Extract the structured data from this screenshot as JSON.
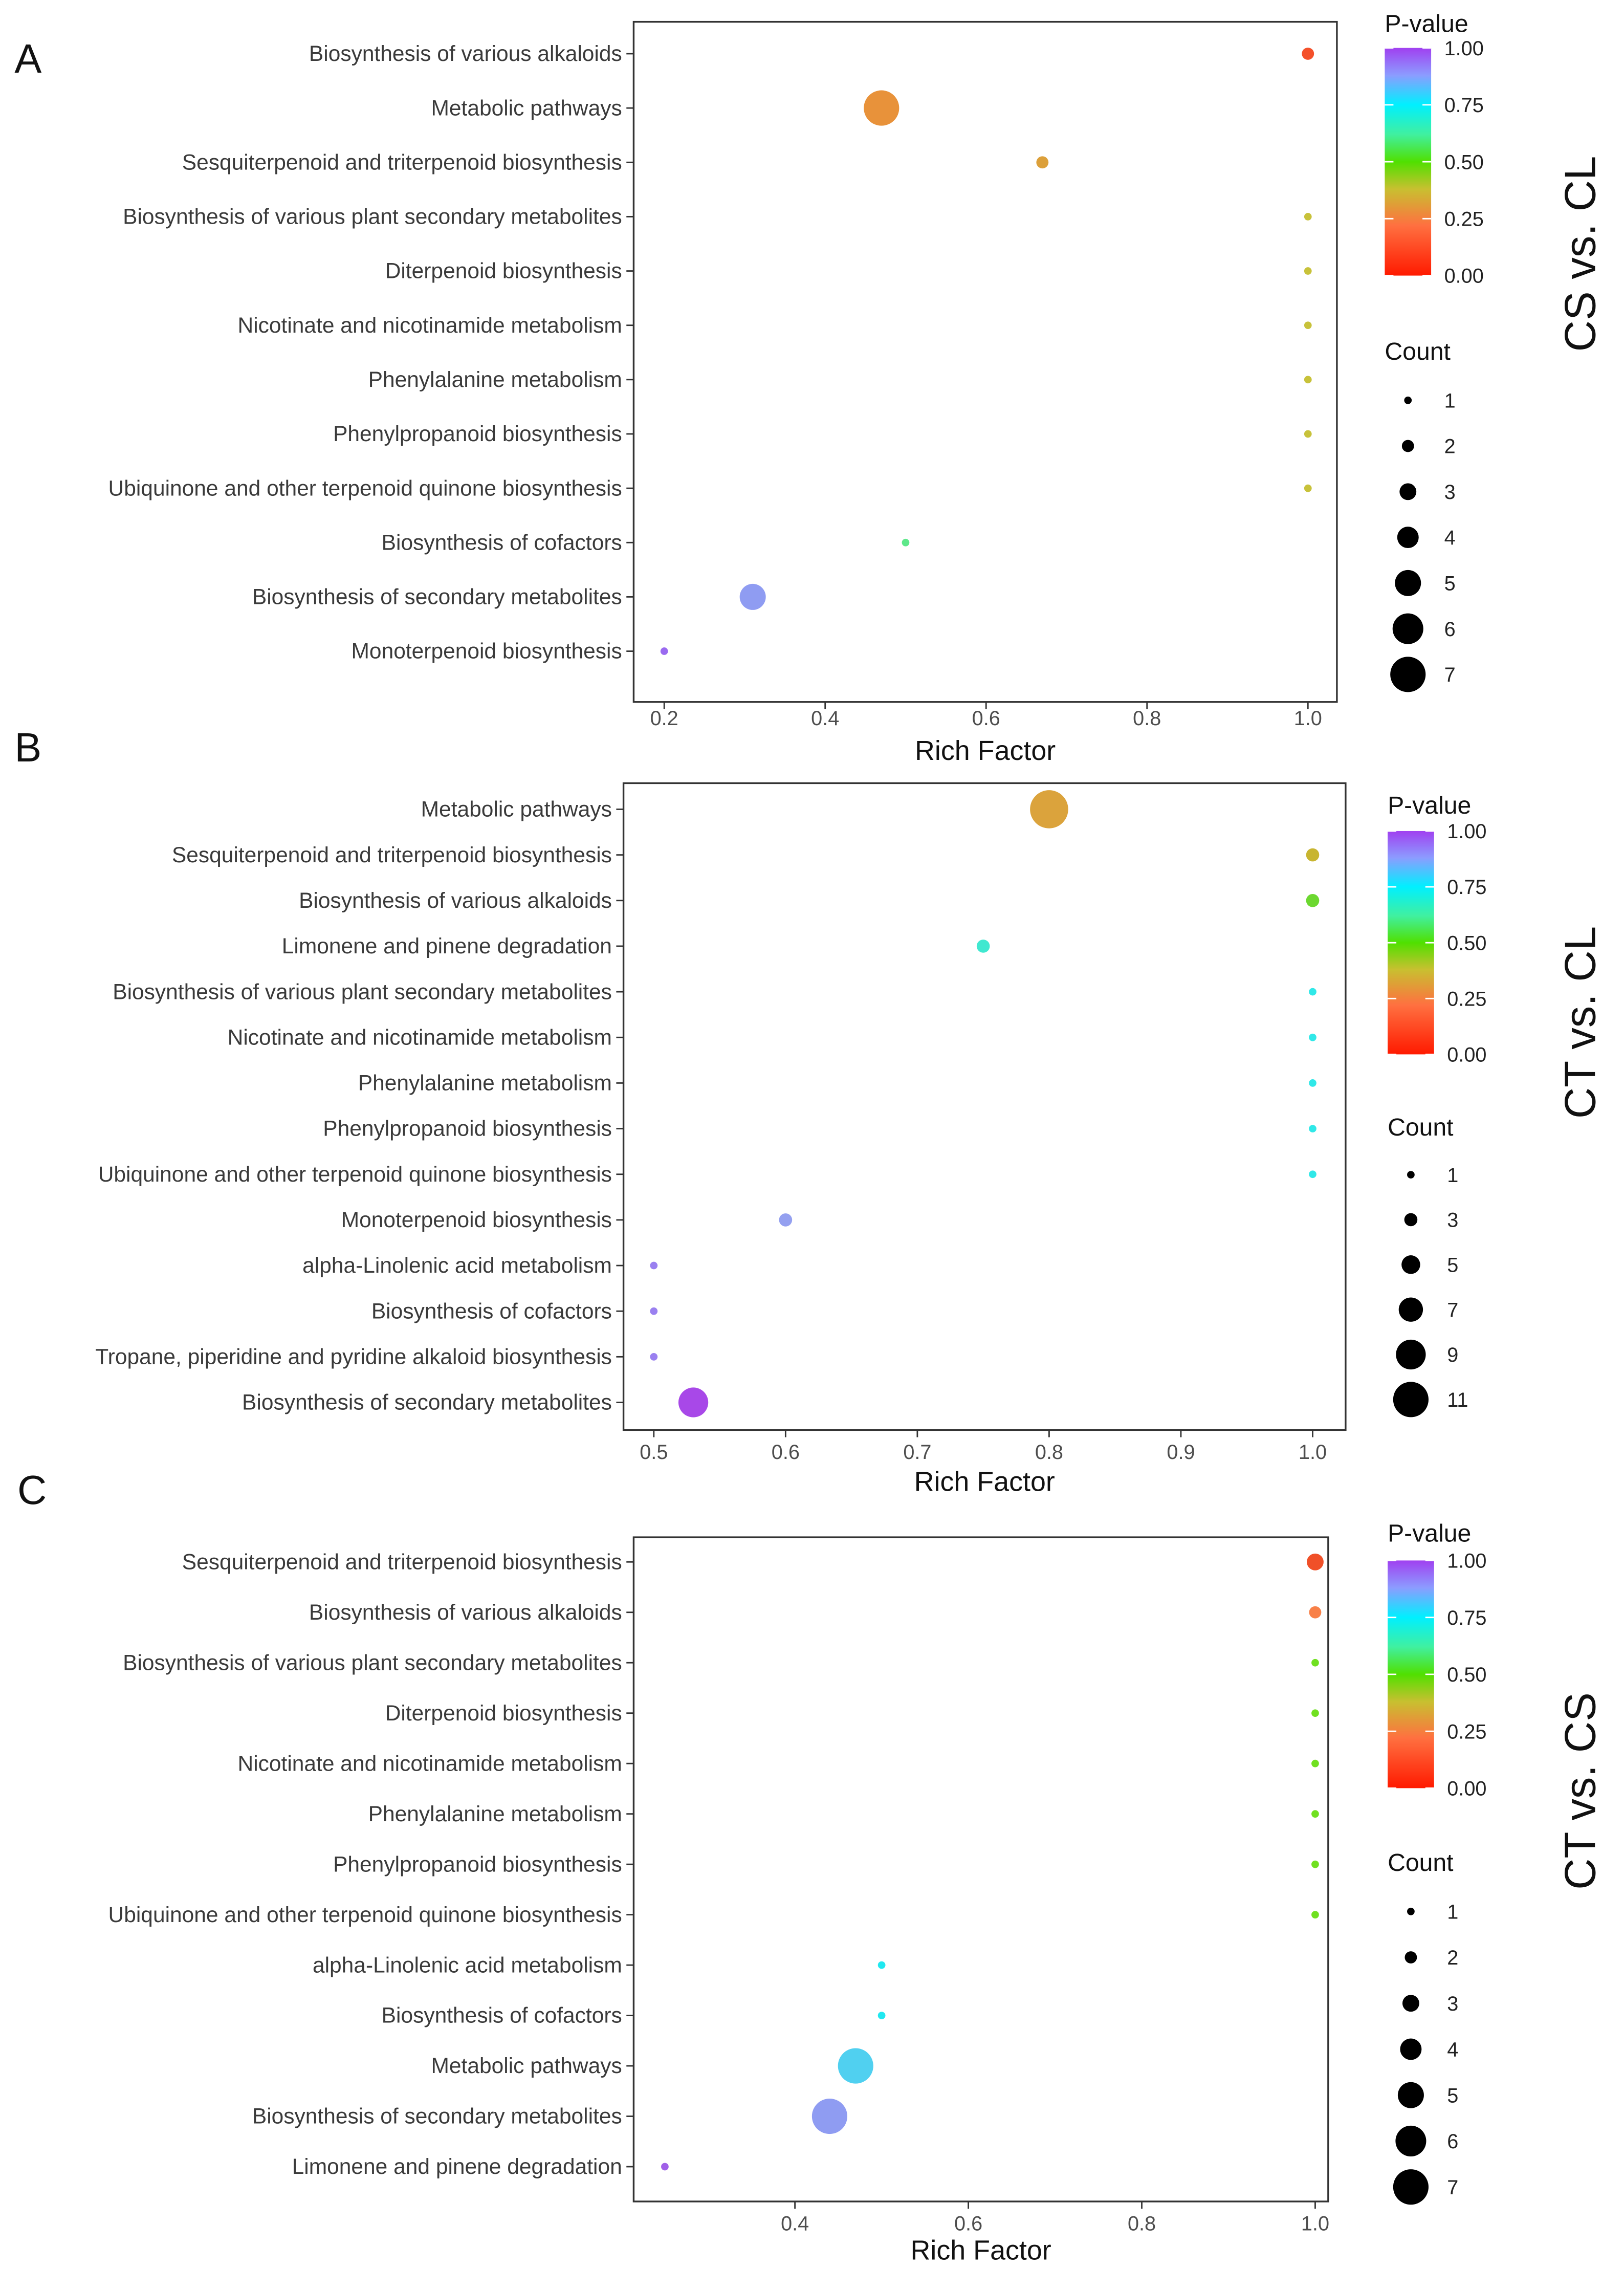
{
  "chart_data": [
    {
      "type": "scatter",
      "panel_label": "A",
      "title": "CS vs. CL",
      "xlabel": "Rich Factor",
      "xlim": [
        0.162,
        1.036
      ],
      "xticks": [
        0.2,
        0.4,
        0.6,
        0.8,
        1.0
      ],
      "xtick_labels": [
        "0.2",
        "0.4",
        "0.6",
        "0.8",
        "1.0"
      ],
      "grid": false,
      "color_legend": {
        "title": "P-value",
        "ticks": [
          "0.00",
          "0.25",
          "0.50",
          "0.75",
          "1.00"
        ]
      },
      "size_legend": {
        "title": "Count",
        "values": [
          1,
          2,
          3,
          4,
          5,
          6,
          7
        ]
      },
      "points": [
        {
          "term": "Biosynthesis of various alkaloids",
          "rich_factor": 1.0,
          "count": 2,
          "p_value": 0.1,
          "color": "#f4502a"
        },
        {
          "term": "Metabolic pathways",
          "rich_factor": 0.47,
          "count": 7,
          "p_value": 0.3,
          "color": "#e8923a"
        },
        {
          "term": "Sesquiterpenoid and triterpenoid biosynthesis",
          "rich_factor": 0.67,
          "count": 2,
          "p_value": 0.32,
          "color": "#dca03a"
        },
        {
          "term": "Biosynthesis of various plant secondary metabolites",
          "rich_factor": 1.0,
          "count": 1,
          "p_value": 0.4,
          "color": "#c8c23a"
        },
        {
          "term": "Diterpenoid biosynthesis",
          "rich_factor": 1.0,
          "count": 1,
          "p_value": 0.4,
          "color": "#c8c23a"
        },
        {
          "term": "Nicotinate and nicotinamide metabolism",
          "rich_factor": 1.0,
          "count": 1,
          "p_value": 0.4,
          "color": "#c8c23a"
        },
        {
          "term": "Phenylalanine metabolism",
          "rich_factor": 1.0,
          "count": 1,
          "p_value": 0.4,
          "color": "#c8c23a"
        },
        {
          "term": "Phenylpropanoid biosynthesis",
          "rich_factor": 1.0,
          "count": 1,
          "p_value": 0.4,
          "color": "#c8c23a"
        },
        {
          "term": "Ubiquinone and other terpenoid quinone biosynthesis",
          "rich_factor": 1.0,
          "count": 1,
          "p_value": 0.4,
          "color": "#c8c23a"
        },
        {
          "term": "Biosynthesis of cofactors",
          "rich_factor": 0.5,
          "count": 1,
          "p_value": 0.6,
          "color": "#5ee88a"
        },
        {
          "term": "Biosynthesis of secondary metabolites",
          "rich_factor": 0.31,
          "count": 5,
          "p_value": 0.88,
          "color": "#8f9cf2"
        },
        {
          "term": "Monoterpenoid biosynthesis",
          "rich_factor": 0.2,
          "count": 1,
          "p_value": 0.95,
          "color": "#9a6af0"
        }
      ]
    },
    {
      "type": "scatter",
      "panel_label": "B",
      "title": "CT vs. CL",
      "xlabel": "Rich Factor",
      "xlim": [
        0.477,
        1.025
      ],
      "xticks": [
        0.5,
        0.6,
        0.7,
        0.8,
        0.9,
        1.0
      ],
      "xtick_labels": [
        "0.5",
        "0.6",
        "0.7",
        "0.8",
        "0.9",
        "1.0"
      ],
      "grid": false,
      "color_legend": {
        "title": "P-value",
        "ticks": [
          "0.00",
          "0.25",
          "0.50",
          "0.75",
          "1.00"
        ]
      },
      "size_legend": {
        "title": "Count",
        "values": [
          1,
          3,
          5,
          7,
          9,
          11
        ]
      },
      "points": [
        {
          "term": "Metabolic pathways",
          "rich_factor": 0.8,
          "count": 12,
          "p_value": 0.3,
          "color": "#dba33c"
        },
        {
          "term": "Sesquiterpenoid and triterpenoid biosynthesis",
          "rich_factor": 1.0,
          "count": 3,
          "p_value": 0.38,
          "color": "#c8b530"
        },
        {
          "term": "Biosynthesis of various alkaloids",
          "rich_factor": 1.0,
          "count": 3,
          "p_value": 0.5,
          "color": "#6cd830"
        },
        {
          "term": "Limonene and pinene degradation",
          "rich_factor": 0.75,
          "count": 3,
          "p_value": 0.7,
          "color": "#40e8d0"
        },
        {
          "term": "Biosynthesis of various plant secondary metabolites",
          "rich_factor": 1.0,
          "count": 1,
          "p_value": 0.73,
          "color": "#30e8e8"
        },
        {
          "term": "Nicotinate and nicotinamide metabolism",
          "rich_factor": 1.0,
          "count": 1,
          "p_value": 0.73,
          "color": "#30e8e8"
        },
        {
          "term": "Phenylalanine metabolism",
          "rich_factor": 1.0,
          "count": 1,
          "p_value": 0.73,
          "color": "#30e8e8"
        },
        {
          "term": "Phenylpropanoid biosynthesis",
          "rich_factor": 1.0,
          "count": 1,
          "p_value": 0.73,
          "color": "#30e8e8"
        },
        {
          "term": "Ubiquinone and other terpenoid quinone biosynthesis",
          "rich_factor": 1.0,
          "count": 1,
          "p_value": 0.73,
          "color": "#30e8e8"
        },
        {
          "term": "Monoterpenoid biosynthesis",
          "rich_factor": 0.6,
          "count": 3,
          "p_value": 0.88,
          "color": "#94a0f0"
        },
        {
          "term": "alpha-Linolenic acid metabolism",
          "rich_factor": 0.5,
          "count": 1,
          "p_value": 0.93,
          "color": "#9a80f0"
        },
        {
          "term": "Biosynthesis of cofactors",
          "rich_factor": 0.5,
          "count": 1,
          "p_value": 0.93,
          "color": "#9a80f0"
        },
        {
          "term": "Tropane, piperidine and pyridine alkaloid biosynthesis",
          "rich_factor": 0.5,
          "count": 1,
          "p_value": 0.93,
          "color": "#9a80f0"
        },
        {
          "term": "Biosynthesis of secondary metabolites",
          "rich_factor": 0.53,
          "count": 9,
          "p_value": 0.99,
          "color": "#a848e8"
        }
      ]
    },
    {
      "type": "scatter",
      "panel_label": "C",
      "title": "CT vs. CS",
      "xlabel": "Rich Factor",
      "xlim": [
        0.214,
        1.015
      ],
      "xticks": [
        0.4,
        0.6,
        0.8,
        1.0
      ],
      "xtick_labels": [
        "0.4",
        "0.6",
        "0.8",
        "1.0"
      ],
      "grid": false,
      "color_legend": {
        "title": "P-value",
        "ticks": [
          "0.00",
          "0.25",
          "0.50",
          "0.75",
          "1.00"
        ]
      },
      "size_legend": {
        "title": "Count",
        "values": [
          1,
          2,
          3,
          4,
          5,
          6,
          7
        ]
      },
      "points": [
        {
          "term": "Sesquiterpenoid and triterpenoid biosynthesis",
          "rich_factor": 1.0,
          "count": 3,
          "p_value": 0.08,
          "color": "#f05028"
        },
        {
          "term": "Biosynthesis of various alkaloids",
          "rich_factor": 1.0,
          "count": 2,
          "p_value": 0.2,
          "color": "#f88048"
        },
        {
          "term": "Biosynthesis of various plant secondary metabolites",
          "rich_factor": 1.0,
          "count": 1,
          "p_value": 0.52,
          "color": "#70e020"
        },
        {
          "term": "Diterpenoid biosynthesis",
          "rich_factor": 1.0,
          "count": 1,
          "p_value": 0.52,
          "color": "#70e020"
        },
        {
          "term": "Nicotinate and nicotinamide metabolism",
          "rich_factor": 1.0,
          "count": 1,
          "p_value": 0.52,
          "color": "#70e020"
        },
        {
          "term": "Phenylalanine metabolism",
          "rich_factor": 1.0,
          "count": 1,
          "p_value": 0.52,
          "color": "#70e020"
        },
        {
          "term": "Phenylpropanoid biosynthesis",
          "rich_factor": 1.0,
          "count": 1,
          "p_value": 0.52,
          "color": "#70e020"
        },
        {
          "term": "Ubiquinone and other terpenoid quinone biosynthesis",
          "rich_factor": 1.0,
          "count": 1,
          "p_value": 0.52,
          "color": "#70e020"
        },
        {
          "term": "alpha-Linolenic acid metabolism",
          "rich_factor": 0.5,
          "count": 1,
          "p_value": 0.76,
          "color": "#20e8f0"
        },
        {
          "term": "Biosynthesis of cofactors",
          "rich_factor": 0.5,
          "count": 1,
          "p_value": 0.76,
          "color": "#20e8f0"
        },
        {
          "term": "Metabolic pathways",
          "rich_factor": 0.47,
          "count": 7,
          "p_value": 0.8,
          "color": "#50d0f0"
        },
        {
          "term": "Biosynthesis of secondary metabolites",
          "rich_factor": 0.44,
          "count": 7,
          "p_value": 0.88,
          "color": "#8f9cf2"
        },
        {
          "term": "Limonene and pinene degradation",
          "rich_factor": 0.25,
          "count": 1,
          "p_value": 0.97,
          "color": "#a060e8"
        }
      ]
    }
  ]
}
